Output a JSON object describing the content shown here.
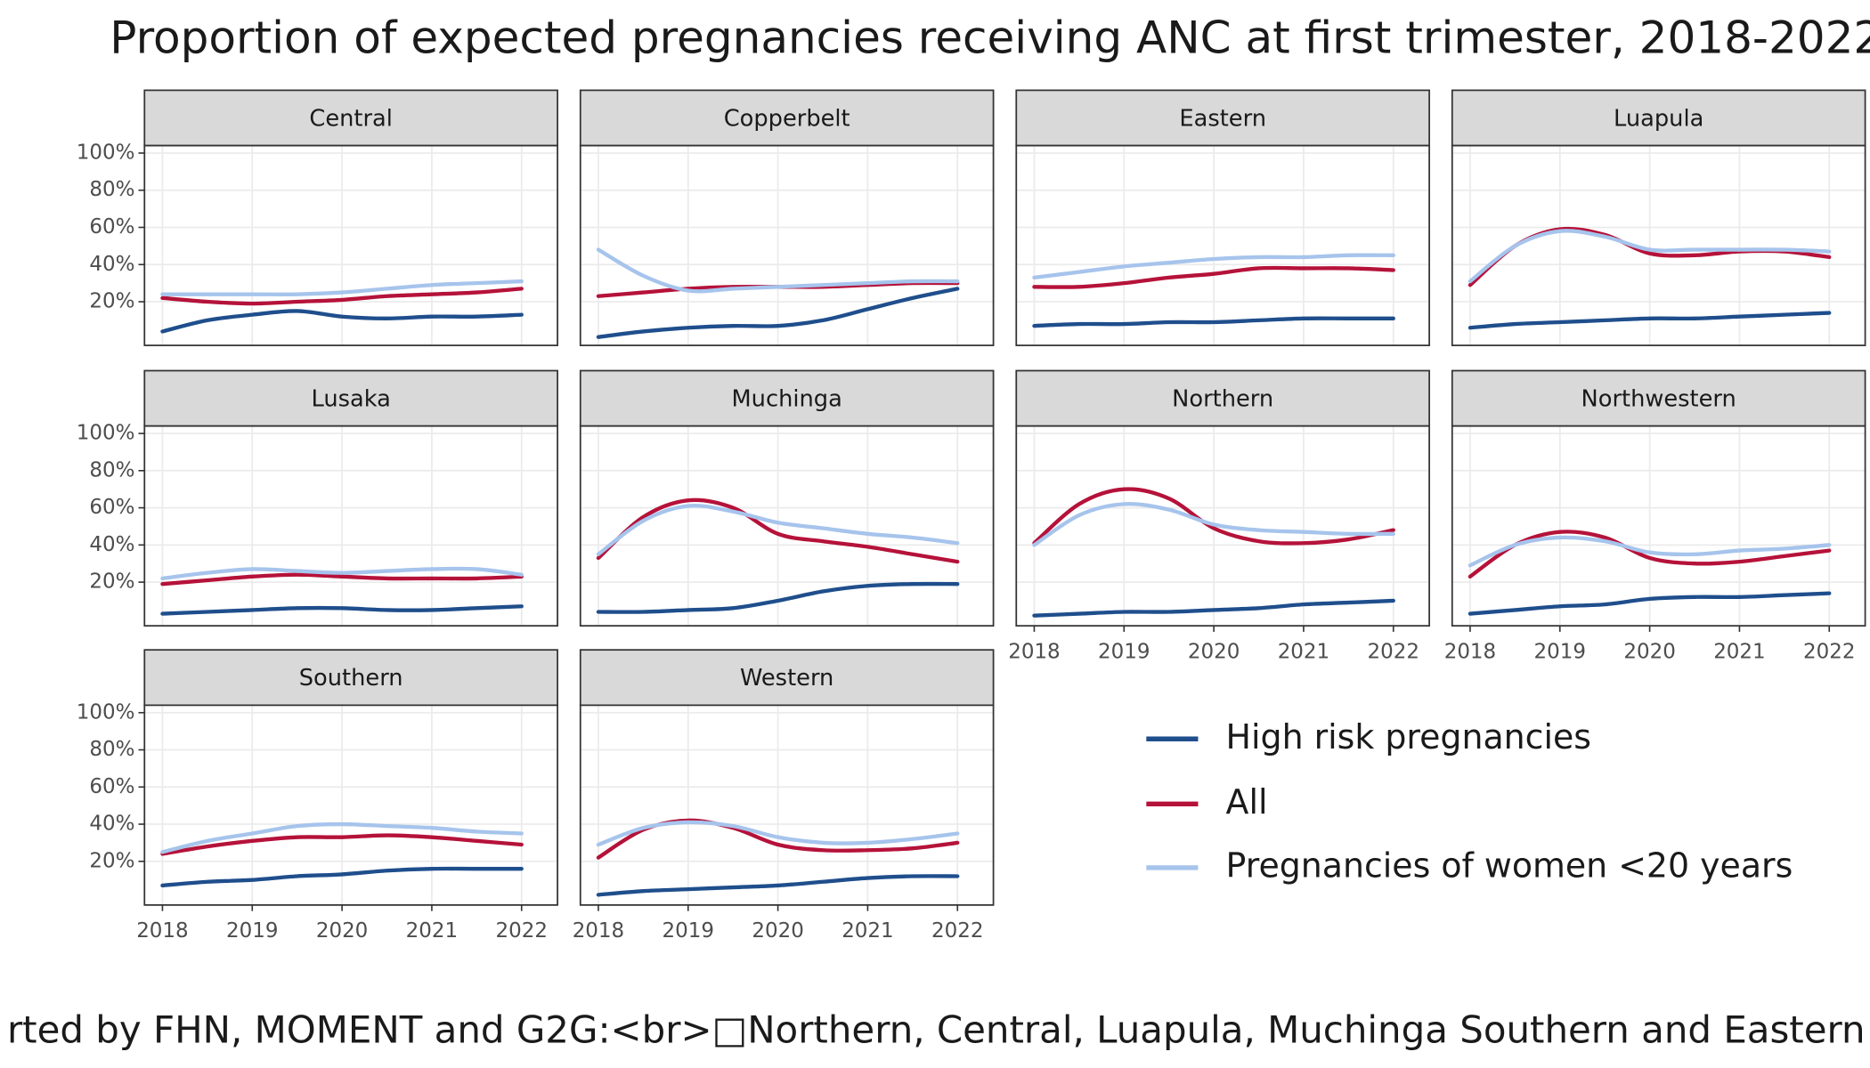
{
  "title": "Proportion of expected pregnancies receiving ANC at first trimester, 2018-2022",
  "caption": "rted by FHN, MOMENT and G2G:<br>□Northern, Central, Luapula, Muchinga Southern and Eastern",
  "chart_data": [
    {
      "type": "line",
      "title": "Central",
      "x": [
        2018,
        2018.5,
        2019,
        2019.5,
        2020,
        2020.5,
        2021,
        2021.5,
        2022
      ],
      "series": [
        {
          "name": "High risk pregnancies",
          "color": "#1f4e8c",
          "values": [
            4,
            10,
            13,
            15,
            12,
            11,
            12,
            12,
            13
          ]
        },
        {
          "name": "All",
          "color": "#b5123a",
          "values": [
            22,
            20,
            19,
            20,
            21,
            23,
            24,
            25,
            27
          ]
        },
        {
          "name": "Pregnancies of women <20 years",
          "color": "#a6c4ec",
          "values": [
            24,
            24,
            24,
            24,
            25,
            27,
            29,
            30,
            31
          ]
        }
      ],
      "xlim": [
        2017.8,
        2022.4
      ],
      "xticks": [
        2018,
        2019,
        2020,
        2021,
        2022
      ],
      "ylim": [
        -3.5,
        104
      ],
      "yticks": [
        {
          "value": 20,
          "label": "20%"
        },
        {
          "value": 40,
          "label": "40%"
        },
        {
          "value": 60,
          "label": "60%"
        },
        {
          "value": 80,
          "label": "80%"
        },
        {
          "value": 100,
          "label": "100%"
        }
      ],
      "grid": true
    },
    {
      "type": "line",
      "title": "Copperbelt",
      "x": [
        2018,
        2018.5,
        2019,
        2019.5,
        2020,
        2020.5,
        2021,
        2021.5,
        2022
      ],
      "series": [
        {
          "name": "High risk pregnancies",
          "color": "#1f4e8c",
          "values": [
            1,
            4,
            6,
            7,
            7,
            10,
            16,
            22,
            27
          ]
        },
        {
          "name": "All",
          "color": "#b5123a",
          "values": [
            23,
            25,
            27,
            28,
            28,
            28,
            29,
            30,
            30
          ]
        },
        {
          "name": "Pregnancies of women <20 years",
          "color": "#a6c4ec",
          "values": [
            48,
            34,
            26,
            27,
            28,
            29,
            30,
            31,
            31
          ]
        }
      ],
      "xlim": [
        2017.8,
        2022.4
      ],
      "xticks": [
        2018,
        2019,
        2020,
        2021,
        2022
      ],
      "ylim": [
        -3.5,
        104
      ],
      "yticks": [
        {
          "value": 20,
          "label": "20%"
        },
        {
          "value": 40,
          "label": "40%"
        },
        {
          "value": 60,
          "label": "60%"
        },
        {
          "value": 80,
          "label": "80%"
        },
        {
          "value": 100,
          "label": "100%"
        }
      ],
      "grid": true
    },
    {
      "type": "line",
      "title": "Eastern",
      "x": [
        2018,
        2018.5,
        2019,
        2019.5,
        2020,
        2020.5,
        2021,
        2021.5,
        2022
      ],
      "series": [
        {
          "name": "High risk pregnancies",
          "color": "#1f4e8c",
          "values": [
            7,
            8,
            8,
            9,
            9,
            10,
            11,
            11,
            11
          ]
        },
        {
          "name": "All",
          "color": "#b5123a",
          "values": [
            28,
            28,
            30,
            33,
            35,
            38,
            38,
            38,
            37
          ]
        },
        {
          "name": "Pregnancies of women <20 years",
          "color": "#a6c4ec",
          "values": [
            33,
            36,
            39,
            41,
            43,
            44,
            44,
            45,
            45
          ]
        }
      ],
      "xlim": [
        2017.8,
        2022.4
      ],
      "xticks": [
        2018,
        2019,
        2020,
        2021,
        2022
      ],
      "ylim": [
        -3.5,
        104
      ],
      "yticks": [
        {
          "value": 20,
          "label": "20%"
        },
        {
          "value": 40,
          "label": "40%"
        },
        {
          "value": 60,
          "label": "60%"
        },
        {
          "value": 80,
          "label": "80%"
        },
        {
          "value": 100,
          "label": "100%"
        }
      ],
      "grid": true
    },
    {
      "type": "line",
      "title": "Luapula",
      "x": [
        2018,
        2018.5,
        2019,
        2019.5,
        2020,
        2020.5,
        2021,
        2021.5,
        2022
      ],
      "series": [
        {
          "name": "High risk pregnancies",
          "color": "#1f4e8c",
          "values": [
            6,
            8,
            9,
            10,
            11,
            11,
            12,
            13,
            14
          ]
        },
        {
          "name": "All",
          "color": "#b5123a",
          "values": [
            29,
            50,
            59,
            56,
            46,
            45,
            47,
            47,
            44
          ]
        },
        {
          "name": "Pregnancies of women <20 years",
          "color": "#a6c4ec",
          "values": [
            31,
            50,
            58,
            55,
            48,
            48,
            48,
            48,
            47
          ]
        }
      ],
      "xlim": [
        2017.8,
        2022.4
      ],
      "xticks": [
        2018,
        2019,
        2020,
        2021,
        2022
      ],
      "ylim": [
        -3.5,
        104
      ],
      "yticks": [
        {
          "value": 20,
          "label": "20%"
        },
        {
          "value": 40,
          "label": "40%"
        },
        {
          "value": 60,
          "label": "60%"
        },
        {
          "value": 80,
          "label": "80%"
        },
        {
          "value": 100,
          "label": "100%"
        }
      ],
      "grid": true
    },
    {
      "type": "line",
      "title": "Lusaka",
      "x": [
        2018,
        2018.5,
        2019,
        2019.5,
        2020,
        2020.5,
        2021,
        2021.5,
        2022
      ],
      "series": [
        {
          "name": "High risk pregnancies",
          "color": "#1f4e8c",
          "values": [
            3,
            4,
            5,
            6,
            6,
            5,
            5,
            6,
            7
          ]
        },
        {
          "name": "All",
          "color": "#b5123a",
          "values": [
            19,
            21,
            23,
            24,
            23,
            22,
            22,
            22,
            23
          ]
        },
        {
          "name": "Pregnancies of women <20 years",
          "color": "#a6c4ec",
          "values": [
            22,
            25,
            27,
            26,
            25,
            26,
            27,
            27,
            24
          ]
        }
      ],
      "xlim": [
        2017.8,
        2022.4
      ],
      "xticks": [
        2018,
        2019,
        2020,
        2021,
        2022
      ],
      "ylim": [
        -3.5,
        104
      ],
      "yticks": [
        {
          "value": 20,
          "label": "20%"
        },
        {
          "value": 40,
          "label": "40%"
        },
        {
          "value": 60,
          "label": "60%"
        },
        {
          "value": 80,
          "label": "80%"
        },
        {
          "value": 100,
          "label": "100%"
        }
      ],
      "grid": true
    },
    {
      "type": "line",
      "title": "Muchinga",
      "x": [
        2018,
        2018.5,
        2019,
        2019.5,
        2020,
        2020.5,
        2021,
        2021.5,
        2022
      ],
      "series": [
        {
          "name": "High risk pregnancies",
          "color": "#1f4e8c",
          "values": [
            4,
            4,
            5,
            6,
            10,
            15,
            18,
            19,
            19
          ]
        },
        {
          "name": "All",
          "color": "#b5123a",
          "values": [
            33,
            55,
            64,
            60,
            46,
            42,
            39,
            35,
            31
          ]
        },
        {
          "name": "Pregnancies of women <20 years",
          "color": "#a6c4ec",
          "values": [
            35,
            53,
            61,
            58,
            52,
            49,
            46,
            44,
            41
          ]
        }
      ],
      "xlim": [
        2017.8,
        2022.4
      ],
      "xticks": [
        2018,
        2019,
        2020,
        2021,
        2022
      ],
      "ylim": [
        -3.5,
        104
      ],
      "yticks": [
        {
          "value": 20,
          "label": "20%"
        },
        {
          "value": 40,
          "label": "40%"
        },
        {
          "value": 60,
          "label": "60%"
        },
        {
          "value": 80,
          "label": "80%"
        },
        {
          "value": 100,
          "label": "100%"
        }
      ],
      "grid": true
    },
    {
      "type": "line",
      "title": "Northern",
      "x": [
        2018,
        2018.5,
        2019,
        2019.5,
        2020,
        2020.5,
        2021,
        2021.5,
        2022
      ],
      "series": [
        {
          "name": "High risk pregnancies",
          "color": "#1f4e8c",
          "values": [
            2,
            3,
            4,
            4,
            5,
            6,
            8,
            9,
            10
          ]
        },
        {
          "name": "All",
          "color": "#b5123a",
          "values": [
            41,
            62,
            70,
            65,
            49,
            42,
            41,
            43,
            48
          ]
        },
        {
          "name": "Pregnancies of women <20 years",
          "color": "#a6c4ec",
          "values": [
            40,
            56,
            62,
            59,
            51,
            48,
            47,
            46,
            46
          ]
        }
      ],
      "xlim": [
        2017.8,
        2022.4
      ],
      "xticks": [
        2018,
        2019,
        2020,
        2021,
        2022
      ],
      "ylim": [
        -3.5,
        104
      ],
      "yticks": [
        {
          "value": 20,
          "label": "20%"
        },
        {
          "value": 40,
          "label": "40%"
        },
        {
          "value": 60,
          "label": "60%"
        },
        {
          "value": 80,
          "label": "80%"
        },
        {
          "value": 100,
          "label": "100%"
        }
      ],
      "grid": true
    },
    {
      "type": "line",
      "title": "Northwestern",
      "x": [
        2018,
        2018.5,
        2019,
        2019.5,
        2020,
        2020.5,
        2021,
        2021.5,
        2022
      ],
      "series": [
        {
          "name": "High risk pregnancies",
          "color": "#1f4e8c",
          "values": [
            3,
            5,
            7,
            8,
            11,
            12,
            12,
            13,
            14
          ]
        },
        {
          "name": "All",
          "color": "#b5123a",
          "values": [
            23,
            40,
            47,
            44,
            33,
            30,
            31,
            34,
            37
          ]
        },
        {
          "name": "Pregnancies of women <20 years",
          "color": "#a6c4ec",
          "values": [
            29,
            40,
            44,
            42,
            36,
            35,
            37,
            38,
            40
          ]
        }
      ],
      "xlim": [
        2017.8,
        2022.4
      ],
      "xticks": [
        2018,
        2019,
        2020,
        2021,
        2022
      ],
      "ylim": [
        -3.5,
        104
      ],
      "yticks": [
        {
          "value": 20,
          "label": "20%"
        },
        {
          "value": 40,
          "label": "40%"
        },
        {
          "value": 60,
          "label": "60%"
        },
        {
          "value": 80,
          "label": "80%"
        },
        {
          "value": 100,
          "label": "100%"
        }
      ],
      "grid": true
    },
    {
      "type": "line",
      "title": "Southern",
      "x": [
        2018,
        2018.5,
        2019,
        2019.5,
        2020,
        2020.5,
        2021,
        2021.5,
        2022
      ],
      "series": [
        {
          "name": "High risk pregnancies",
          "color": "#1f4e8c",
          "values": [
            7,
            9,
            10,
            12,
            13,
            15,
            16,
            16,
            16
          ]
        },
        {
          "name": "All",
          "color": "#b5123a",
          "values": [
            24,
            28,
            31,
            33,
            33,
            34,
            33,
            31,
            29
          ]
        },
        {
          "name": "Pregnancies of women <20 years",
          "color": "#a6c4ec",
          "values": [
            25,
            31,
            35,
            39,
            40,
            39,
            38,
            36,
            35
          ]
        }
      ],
      "xlim": [
        2017.8,
        2022.4
      ],
      "xticks": [
        2018,
        2019,
        2020,
        2021,
        2022
      ],
      "ylim": [
        -3.5,
        104
      ],
      "yticks": [
        {
          "value": 20,
          "label": "20%"
        },
        {
          "value": 40,
          "label": "40%"
        },
        {
          "value": 60,
          "label": "60%"
        },
        {
          "value": 80,
          "label": "80%"
        },
        {
          "value": 100,
          "label": "100%"
        }
      ],
      "grid": true
    },
    {
      "type": "line",
      "title": "Western",
      "x": [
        2018,
        2018.5,
        2019,
        2019.5,
        2020,
        2020.5,
        2021,
        2021.5,
        2022
      ],
      "series": [
        {
          "name": "High risk pregnancies",
          "color": "#1f4e8c",
          "values": [
            2,
            4,
            5,
            6,
            7,
            9,
            11,
            12,
            12
          ]
        },
        {
          "name": "All",
          "color": "#b5123a",
          "values": [
            22,
            37,
            42,
            38,
            29,
            26,
            26,
            27,
            30
          ]
        },
        {
          "name": "Pregnancies of women <20 years",
          "color": "#a6c4ec",
          "values": [
            29,
            38,
            41,
            39,
            33,
            30,
            30,
            32,
            35
          ]
        }
      ],
      "xlim": [
        2017.8,
        2022.4
      ],
      "xticks": [
        2018,
        2019,
        2020,
        2021,
        2022
      ],
      "ylim": [
        -3.5,
        104
      ],
      "yticks": [
        {
          "value": 20,
          "label": "20%"
        },
        {
          "value": 40,
          "label": "40%"
        },
        {
          "value": 60,
          "label": "60%"
        },
        {
          "value": 80,
          "label": "80%"
        },
        {
          "value": 100,
          "label": "100%"
        }
      ],
      "grid": true
    }
  ]
}
